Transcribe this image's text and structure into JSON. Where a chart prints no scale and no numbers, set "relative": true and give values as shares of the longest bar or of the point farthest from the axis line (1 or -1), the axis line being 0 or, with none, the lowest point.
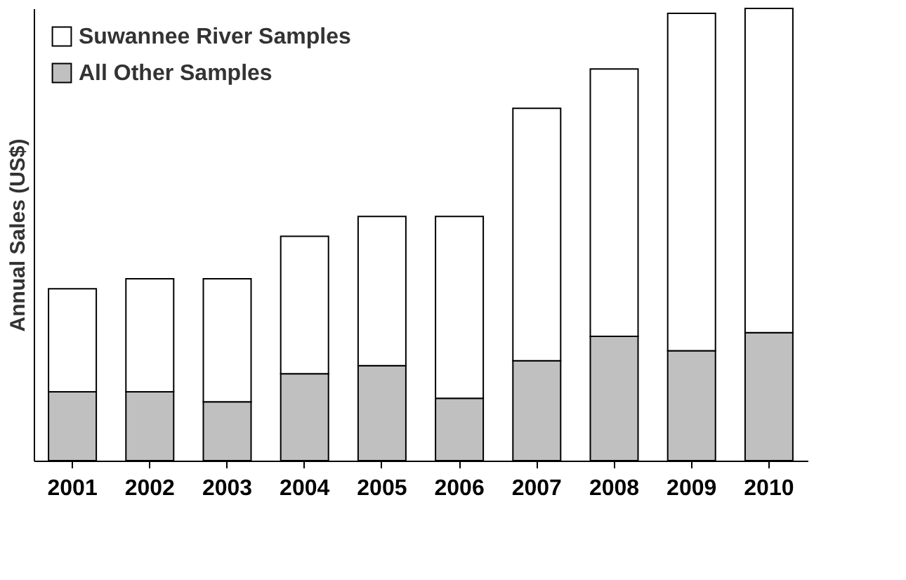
{
  "chart_data": {
    "type": "bar",
    "stacked": true,
    "relative": true,
    "ylabel": "Annual Sales (US$)",
    "legend": "top left",
    "categories": [
      "2001",
      "2002",
      "2003",
      "2004",
      "2005",
      "2006",
      "2007",
      "2008",
      "2009",
      "2010"
    ],
    "series": [
      {
        "name": "All Other Samples",
        "color": "#c0c0c0",
        "values": [
          0.152,
          0.152,
          0.13,
          0.192,
          0.21,
          0.138,
          0.221,
          0.275,
          0.243,
          0.283
        ]
      },
      {
        "name": "Suwannee River Samples",
        "color": "#ffffff",
        "values": [
          0.228,
          0.25,
          0.272,
          0.304,
          0.33,
          0.402,
          0.558,
          0.591,
          0.746,
          0.717
        ]
      }
    ]
  }
}
